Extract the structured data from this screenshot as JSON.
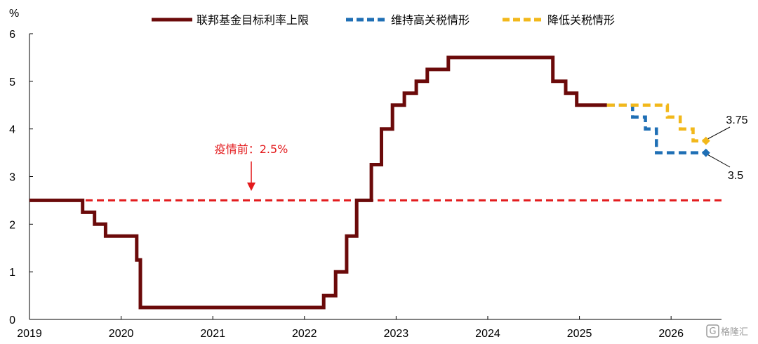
{
  "chart_data": {
    "type": "line",
    "ylabel": "%",
    "xlabel": "",
    "ylim": [
      0,
      6
    ],
    "xlim": [
      2019,
      2026.55
    ],
    "yticks": [
      "0",
      "1",
      "2",
      "3",
      "4",
      "5",
      "6"
    ],
    "xticks": [
      "2019",
      "2020",
      "2021",
      "2022",
      "2023",
      "2024",
      "2025",
      "2026"
    ],
    "grid": false,
    "legend_position": "top",
    "series": [
      {
        "name": "联邦基金目标利率上限",
        "color": "#6b0a0a",
        "style": "solid",
        "points": [
          [
            2019.0,
            2.5
          ],
          [
            2019.58,
            2.5
          ],
          [
            2019.58,
            2.25
          ],
          [
            2019.71,
            2.25
          ],
          [
            2019.71,
            2.0
          ],
          [
            2019.83,
            2.0
          ],
          [
            2019.83,
            1.75
          ],
          [
            2020.17,
            1.75
          ],
          [
            2020.17,
            1.25
          ],
          [
            2020.21,
            1.25
          ],
          [
            2020.21,
            0.25
          ],
          [
            2022.21,
            0.25
          ],
          [
            2022.21,
            0.5
          ],
          [
            2022.34,
            0.5
          ],
          [
            2022.34,
            1.0
          ],
          [
            2022.46,
            1.0
          ],
          [
            2022.46,
            1.75
          ],
          [
            2022.57,
            1.75
          ],
          [
            2022.57,
            2.5
          ],
          [
            2022.73,
            2.5
          ],
          [
            2022.73,
            3.25
          ],
          [
            2022.84,
            3.25
          ],
          [
            2022.84,
            4.0
          ],
          [
            2022.96,
            4.0
          ],
          [
            2022.96,
            4.5
          ],
          [
            2023.09,
            4.5
          ],
          [
            2023.09,
            4.75
          ],
          [
            2023.22,
            4.75
          ],
          [
            2023.22,
            5.0
          ],
          [
            2023.34,
            5.0
          ],
          [
            2023.34,
            5.25
          ],
          [
            2023.57,
            5.25
          ],
          [
            2023.57,
            5.5
          ],
          [
            2024.71,
            5.5
          ],
          [
            2024.71,
            5.0
          ],
          [
            2024.85,
            5.0
          ],
          [
            2024.85,
            4.75
          ],
          [
            2024.97,
            4.75
          ],
          [
            2024.97,
            4.5
          ],
          [
            2025.3,
            4.5
          ]
        ]
      },
      {
        "name": "维持高关税情形",
        "color": "#1f6fb5",
        "style": "dashed",
        "points": [
          [
            2025.3,
            4.5
          ],
          [
            2025.58,
            4.5
          ],
          [
            2025.58,
            4.25
          ],
          [
            2025.72,
            4.25
          ],
          [
            2025.72,
            4.0
          ],
          [
            2025.84,
            4.0
          ],
          [
            2025.84,
            3.5
          ],
          [
            2026.38,
            3.5
          ]
        ]
      },
      {
        "name": "降低关税情形",
        "color": "#f2b81b",
        "style": "dashed",
        "points": [
          [
            2025.3,
            4.5
          ],
          [
            2025.96,
            4.5
          ],
          [
            2025.96,
            4.25
          ],
          [
            2026.1,
            4.25
          ],
          [
            2026.1,
            4.0
          ],
          [
            2026.24,
            4.0
          ],
          [
            2026.24,
            3.75
          ],
          [
            2026.38,
            3.75
          ]
        ]
      }
    ],
    "reference_line": {
      "value": 2.5,
      "color": "#e31a1c",
      "style": "dashed"
    },
    "annotations": [
      {
        "text": "疫情前：2.5%",
        "x": 2021.42,
        "y": 2.5,
        "color": "#e31a1c"
      },
      {
        "text": "3.75",
        "x": 2026.38,
        "y": 3.75
      },
      {
        "text": "3.5",
        "x": 2026.38,
        "y": 3.5
      }
    ]
  },
  "watermark": "格隆汇"
}
